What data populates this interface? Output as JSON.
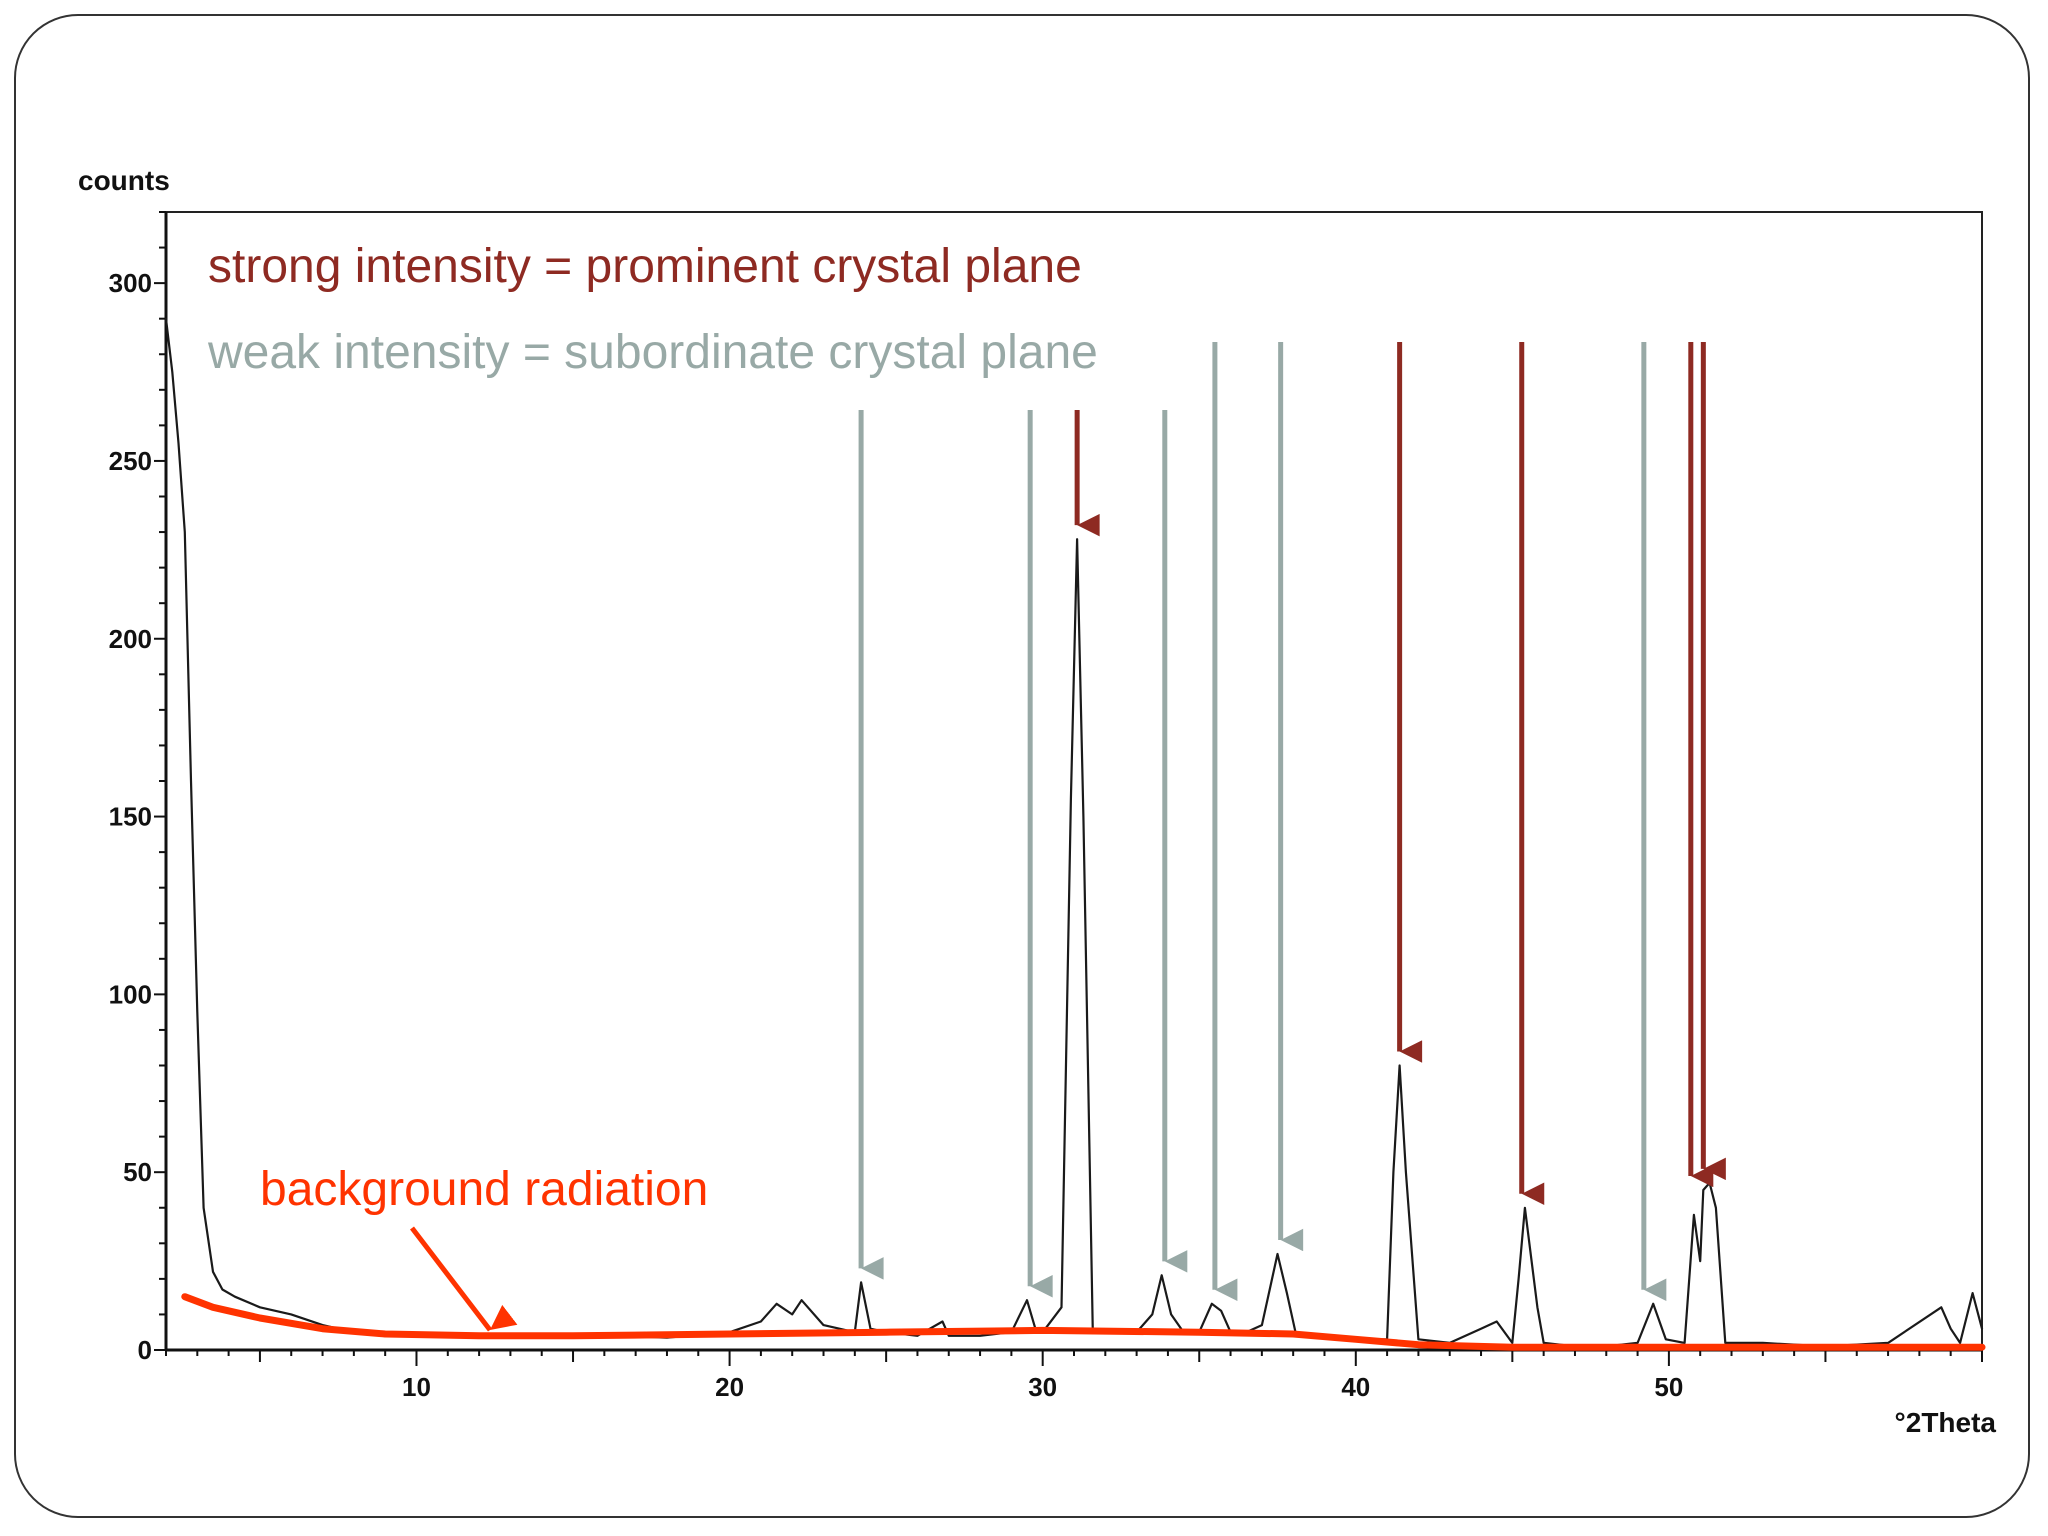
{
  "colors": {
    "frame": "#333333",
    "trace": "#1a1a1a",
    "strong": "#8e2a22",
    "weak": "#98a9a6",
    "background_line": "#ff3300"
  },
  "annotations": {
    "strong_note": "strong intensity = prominent crystal plane",
    "weak_note": "weak intensity = subordinate crystal plane",
    "background_note": "background radiation"
  },
  "chart_data": {
    "type": "line",
    "title": "",
    "xlabel": "°2Theta",
    "ylabel": "counts",
    "xlim": [
      2,
      60
    ],
    "ylim": [
      0,
      320
    ],
    "x_ticks": [
      10,
      20,
      30,
      40,
      50
    ],
    "y_ticks": [
      0,
      50,
      100,
      150,
      200,
      250,
      300
    ],
    "grid": false,
    "legend": "none",
    "series": [
      {
        "x": [
          2,
          2.2,
          2.4,
          2.6,
          2.8,
          3.0,
          3.2,
          3.5,
          3.8,
          4.2,
          5,
          6,
          7,
          8,
          9,
          10,
          12,
          14,
          16,
          18,
          20,
          21,
          21.5,
          22,
          22.3,
          23,
          24,
          24.2,
          24.5,
          25,
          26,
          26.8,
          27,
          28,
          29,
          29.5,
          29.8,
          30,
          30.6,
          30.9,
          31.1,
          31.3,
          31.6,
          32,
          33,
          33.5,
          33.8,
          34.1,
          34.5,
          35,
          35.4,
          35.7,
          36,
          36.5,
          37,
          37.5,
          37.8,
          38.1,
          39,
          40,
          41,
          41.2,
          41.4,
          41.6,
          42,
          43,
          44,
          44.5,
          45,
          45.2,
          45.4,
          45.8,
          46,
          47,
          48,
          49,
          49.5,
          49.9,
          50.5,
          50.8,
          51,
          51.1,
          51.3,
          51.5,
          51.8,
          52,
          53,
          55,
          57,
          58.7,
          59,
          59.3,
          59.7,
          60
        ],
        "y": [
          290,
          275,
          255,
          230,
          160,
          95,
          40,
          22,
          17,
          15,
          12,
          10,
          7,
          5,
          4,
          4,
          4,
          3.5,
          4,
          3.5,
          5,
          8,
          13,
          10,
          14,
          7,
          5,
          19,
          6,
          5,
          4,
          8,
          4,
          4,
          5,
          14,
          5,
          5,
          12,
          155,
          228,
          150,
          5,
          5,
          5,
          10,
          21,
          10,
          5,
          5,
          13,
          11,
          5,
          5,
          7,
          27,
          16,
          4,
          4,
          3,
          3,
          50,
          80,
          50,
          3,
          2,
          6,
          8,
          2,
          20,
          40,
          12,
          2,
          1,
          1,
          2,
          13,
          3,
          2,
          38,
          25,
          45,
          47,
          40,
          2,
          2,
          2,
          1,
          2,
          12,
          6,
          2,
          16,
          6
        ]
      },
      {
        "x": [
          2.6,
          3.5,
          5,
          7,
          9,
          12,
          15,
          20,
          25,
          30,
          35,
          38,
          40,
          42,
          45,
          50,
          55,
          60
        ],
        "y": [
          15,
          12,
          9,
          6,
          4.5,
          4,
          4,
          4.5,
          5,
          5.5,
          5,
          4.5,
          3,
          1.5,
          0.8,
          0.8,
          0.8,
          0.8
        ]
      }
    ],
    "strong_arrows_x": [
      31.1,
      41.4,
      45.3,
      50.7,
      51.1
    ],
    "weak_arrows_x": [
      24.2,
      29.6,
      33.9,
      35.5,
      37.6,
      49.2
    ]
  }
}
